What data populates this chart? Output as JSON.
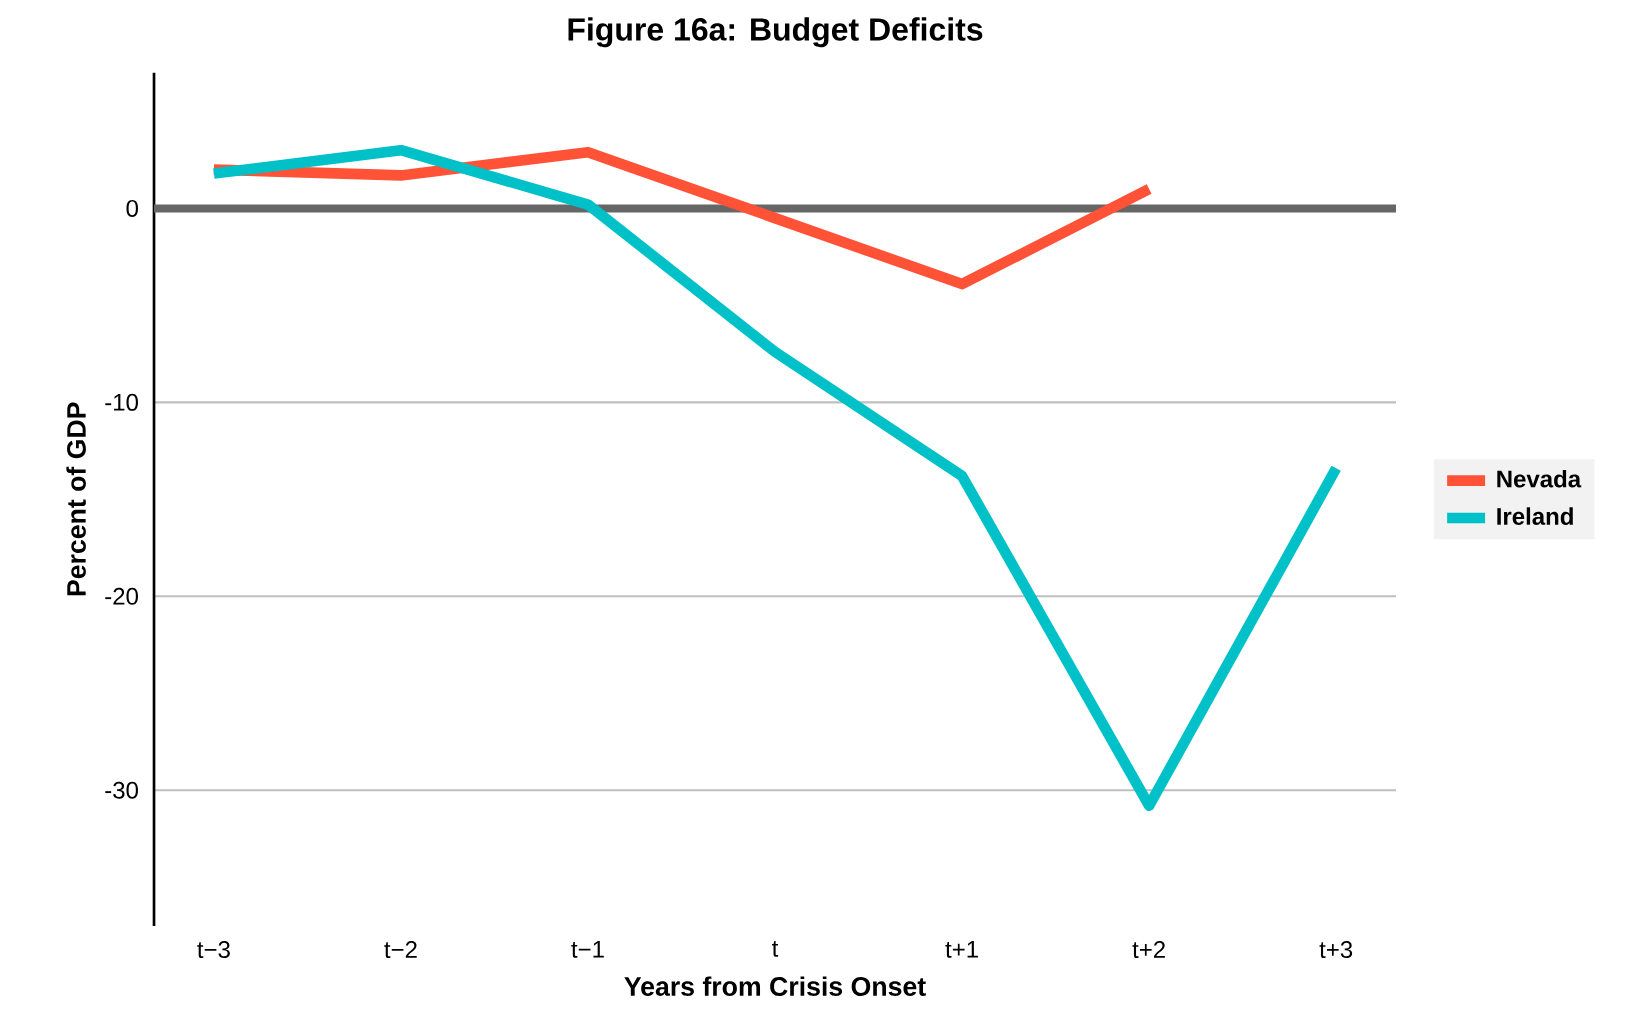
{
  "chart_data": {
    "type": "line",
    "title": "Figure 16a: Budget Deficits",
    "xlabel": "Years from Crisis Onset",
    "ylabel": "Percent of GDP",
    "categories": [
      "t−3",
      "t−2",
      "t−1",
      "t",
      "t+1",
      "t+2",
      "t+3"
    ],
    "series": [
      {
        "name": "Nevada",
        "color": "#ff5236",
        "values": [
          2.0,
          1.7,
          2.9,
          -0.5,
          -3.9,
          1.0,
          null
        ]
      },
      {
        "name": "Ireland",
        "color": "#00c0c8",
        "values": [
          1.8,
          3.0,
          0.2,
          -7.4,
          -13.8,
          -30.8,
          -13.4
        ]
      }
    ],
    "ylim": [
      -37,
      7
    ],
    "yticks": [
      -30,
      -20,
      -10,
      0
    ],
    "grid": "y",
    "legend": "right",
    "line_style": "solid",
    "ref_lines": [
      {
        "axis": "y",
        "value": 0,
        "color": "#666666"
      }
    ]
  }
}
